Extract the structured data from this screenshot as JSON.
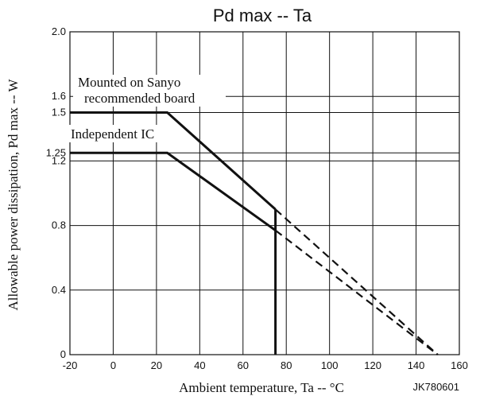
{
  "chart_data": {
    "type": "line",
    "title": "Pd max -- Ta",
    "xlabel": "Ambient temperature, Ta -- °C",
    "ylabel": "Allowable power dissipation, Pd max -- W",
    "code": "JK780601",
    "xlim": [
      -20,
      160
    ],
    "ylim": [
      0,
      2.0
    ],
    "x_ticks": [
      -20,
      0,
      20,
      40,
      60,
      80,
      100,
      120,
      140,
      160
    ],
    "y_ticks": [
      0,
      0.4,
      0.8,
      1.2,
      1.25,
      1.5,
      1.6,
      2.0
    ],
    "y_tick_labels": [
      "0",
      "0.4",
      "0.8",
      "1.2",
      "1.25",
      "1.5",
      "1.6",
      "2.0"
    ],
    "grid": true,
    "series": [
      {
        "name": "Mounted on Sanyo recommended board",
        "solid": [
          [
            -20,
            1.5
          ],
          [
            25,
            1.5
          ],
          [
            75,
            0.9
          ]
        ],
        "dashed": [
          [
            75,
            0.9
          ],
          [
            150,
            0
          ]
        ]
      },
      {
        "name": "Independent IC",
        "solid": [
          [
            -20,
            1.25
          ],
          [
            25,
            1.25
          ],
          [
            75,
            0.77
          ]
        ],
        "dashed": [
          [
            75,
            0.77
          ],
          [
            150,
            0
          ]
        ]
      }
    ],
    "vertical_line": {
      "x": 75,
      "y_from": 0,
      "y_to": 0.9
    },
    "annotations": [
      "Mounted on Sanyo",
      "recommended board",
      "Independent IC"
    ]
  }
}
